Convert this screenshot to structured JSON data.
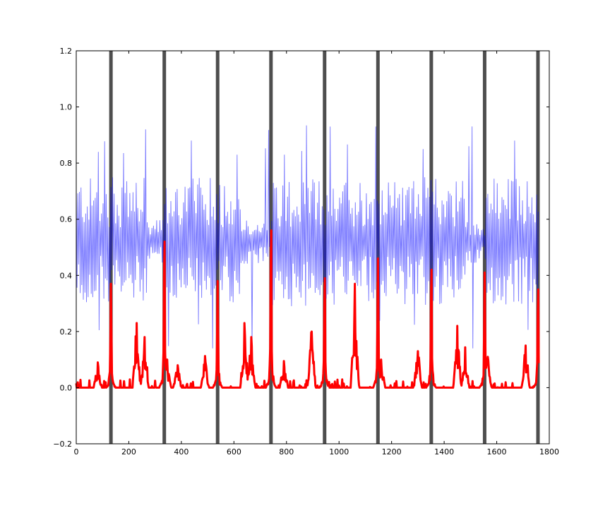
{
  "chart_data": {
    "type": "line",
    "title": "",
    "xlabel": "",
    "ylabel": "",
    "xlim": [
      0,
      1800
    ],
    "ylim": [
      -0.2,
      1.2
    ],
    "x_ticks": [
      0,
      200,
      400,
      600,
      800,
      1000,
      1200,
      1400,
      1600,
      1800
    ],
    "y_ticks": [
      -0.2,
      0.0,
      0.2,
      0.4,
      0.6,
      0.8,
      1.0,
      1.2
    ],
    "x_tick_labels": [
      "0",
      "200",
      "400",
      "600",
      "800",
      "1000",
      "1200",
      "1400",
      "1600",
      "1800"
    ],
    "y_tick_labels": [
      "−0.2",
      "0.0",
      "0.2",
      "0.4",
      "0.6",
      "0.8",
      "1.0",
      "1.2"
    ],
    "grid": false,
    "legend": "none",
    "vertical_lines": {
      "x": [
        132,
        335,
        538,
        741,
        945,
        1148,
        1351,
        1554,
        1757
      ],
      "color": "#222222",
      "opacity": 0.8
    },
    "series": [
      {
        "color": "#0000ff",
        "opacity": 0.5,
        "oscillation": {
          "center": 0.52,
          "typical_amplitude": 0.2,
          "peak_values": [
            0.84,
            0.92,
            0.88,
            0.83,
            0.83,
            0.93,
            0.93,
            0.85,
            0.86,
            0.88
          ],
          "min_value": 0.14,
          "calm_spans": [
            [
              270,
              330
            ],
            [
              630,
              740
            ],
            [
              1480,
              1554
            ]
          ]
        }
      },
      {
        "color": "#ff0000",
        "opacity": 1.0,
        "baseline": 0.0,
        "spikes": [
          {
            "x": 132,
            "y": 0.37
          },
          {
            "x": 335,
            "y": 0.52
          },
          {
            "x": 538,
            "y": 0.38
          },
          {
            "x": 741,
            "y": 0.56
          },
          {
            "x": 945,
            "y": 0.39
          },
          {
            "x": 1148,
            "y": 0.46
          },
          {
            "x": 1351,
            "y": 0.42
          },
          {
            "x": 1554,
            "y": 0.41
          },
          {
            "x": 1757,
            "y": 0.35
          }
        ],
        "bumps": [
          {
            "x": 82,
            "y": 0.09
          },
          {
            "x": 230,
            "y": 0.23
          },
          {
            "x": 260,
            "y": 0.18
          },
          {
            "x": 345,
            "y": 0.1
          },
          {
            "x": 385,
            "y": 0.08
          },
          {
            "x": 490,
            "y": 0.11
          },
          {
            "x": 640,
            "y": 0.23
          },
          {
            "x": 665,
            "y": 0.18
          },
          {
            "x": 790,
            "y": 0.09
          },
          {
            "x": 895,
            "y": 0.2
          },
          {
            "x": 1060,
            "y": 0.37
          },
          {
            "x": 1160,
            "y": 0.1
          },
          {
            "x": 1300,
            "y": 0.13
          },
          {
            "x": 1450,
            "y": 0.22
          },
          {
            "x": 1480,
            "y": 0.14
          },
          {
            "x": 1565,
            "y": 0.11
          },
          {
            "x": 1710,
            "y": 0.15
          }
        ]
      }
    ]
  }
}
